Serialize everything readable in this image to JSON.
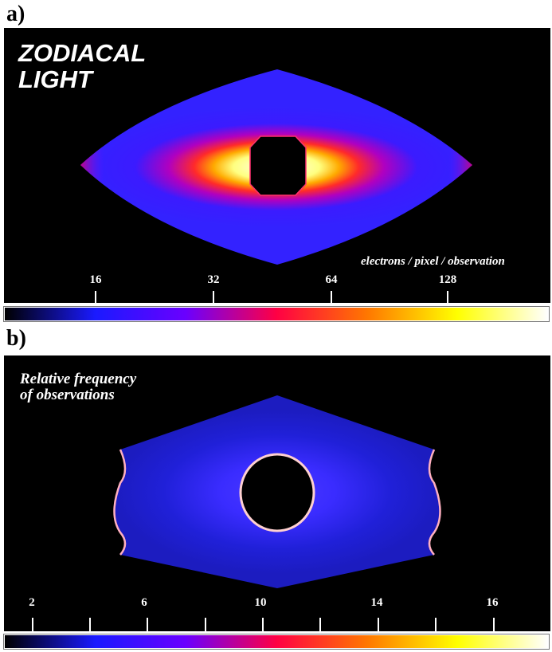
{
  "chart_data": [
    {
      "type": "heatmap",
      "panel_label": "a)",
      "title_lines": [
        "ZODIACAL",
        "LIGHT"
      ],
      "units": "electrons / pixel / observation",
      "colorbar_ticks": [
        "16",
        "32",
        "64",
        "128"
      ],
      "colorbar_scale": "log",
      "colormap": [
        "#000000",
        "#1a1aff",
        "#6a00ff",
        "#ff0044",
        "#ff7700",
        "#ffff00",
        "#ffffff"
      ],
      "grid": false
    },
    {
      "type": "heatmap",
      "panel_label": "b)",
      "title_lines": [
        "Relative frequency",
        "of observations"
      ],
      "units": "",
      "colorbar_ticks": [
        "2",
        "6",
        "10",
        "14",
        "16"
      ],
      "colorbar_minor_ticks": 5,
      "colorbar_scale": "linear",
      "colormap": [
        "#000000",
        "#1a1aff",
        "#6a00ff",
        "#ff0044",
        "#ff7700",
        "#ffff00",
        "#ffffff"
      ],
      "grid": false
    }
  ]
}
